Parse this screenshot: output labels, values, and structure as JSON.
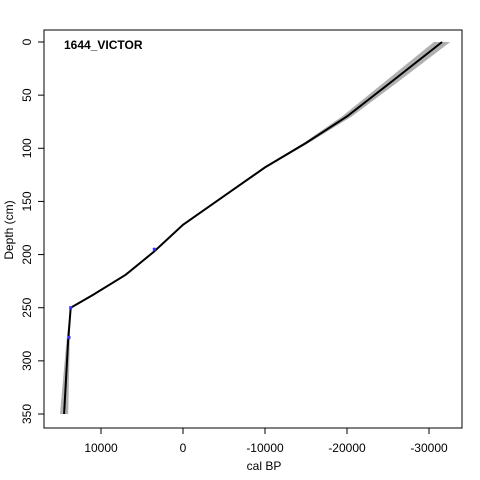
{
  "chart_data": {
    "type": "line",
    "title": "1644_VICTOR",
    "xlabel": "cal BP",
    "ylabel": "Depth (cm)",
    "x_reversed": true,
    "y_reversed": true,
    "xlim": [
      16500,
      -33000
    ],
    "ylim": [
      0,
      360
    ],
    "xticks": [
      10000,
      0,
      -10000,
      -20000,
      -30000
    ],
    "xtick_labels": [
      "10000",
      "0",
      "-10000",
      "-20000",
      "-30000"
    ],
    "yticks": [
      0,
      50,
      100,
      150,
      200,
      250,
      300,
      350
    ],
    "ytick_labels": [
      "0",
      "50",
      "100",
      "150",
      "200",
      "250",
      "300",
      "350"
    ],
    "grid": false,
    "series": [
      {
        "role": "median",
        "color": "#000000",
        "x": [
          -31600,
          -25000,
          -20000,
          -15000,
          -10000,
          -5000,
          0,
          3500,
          7000,
          11000,
          13700,
          14000,
          14500
        ],
        "y": [
          0,
          40,
          70,
          95,
          118,
          145,
          172,
          197,
          219,
          238,
          250,
          280,
          350
        ]
      },
      {
        "role": "uncertainty-envelope",
        "color": "#b0b0b0",
        "x_upper": [
          -32600,
          -25800,
          -20600,
          -15300,
          -10200,
          -5100,
          0,
          3500,
          7000,
          11000,
          13700,
          14200,
          15000
        ],
        "x_lower": [
          -30600,
          -24200,
          -19400,
          -14700,
          -9800,
          -4900,
          0,
          3500,
          7000,
          11000,
          13700,
          13800,
          14000
        ],
        "y": [
          0,
          40,
          70,
          95,
          118,
          145,
          172,
          197,
          219,
          238,
          250,
          280,
          350
        ]
      }
    ],
    "dated_points": [
      {
        "x": 3500,
        "y": 195
      },
      {
        "x": 13700,
        "y": 250
      },
      {
        "x": 13900,
        "y": 278
      }
    ],
    "point_color": "#3333ff"
  }
}
